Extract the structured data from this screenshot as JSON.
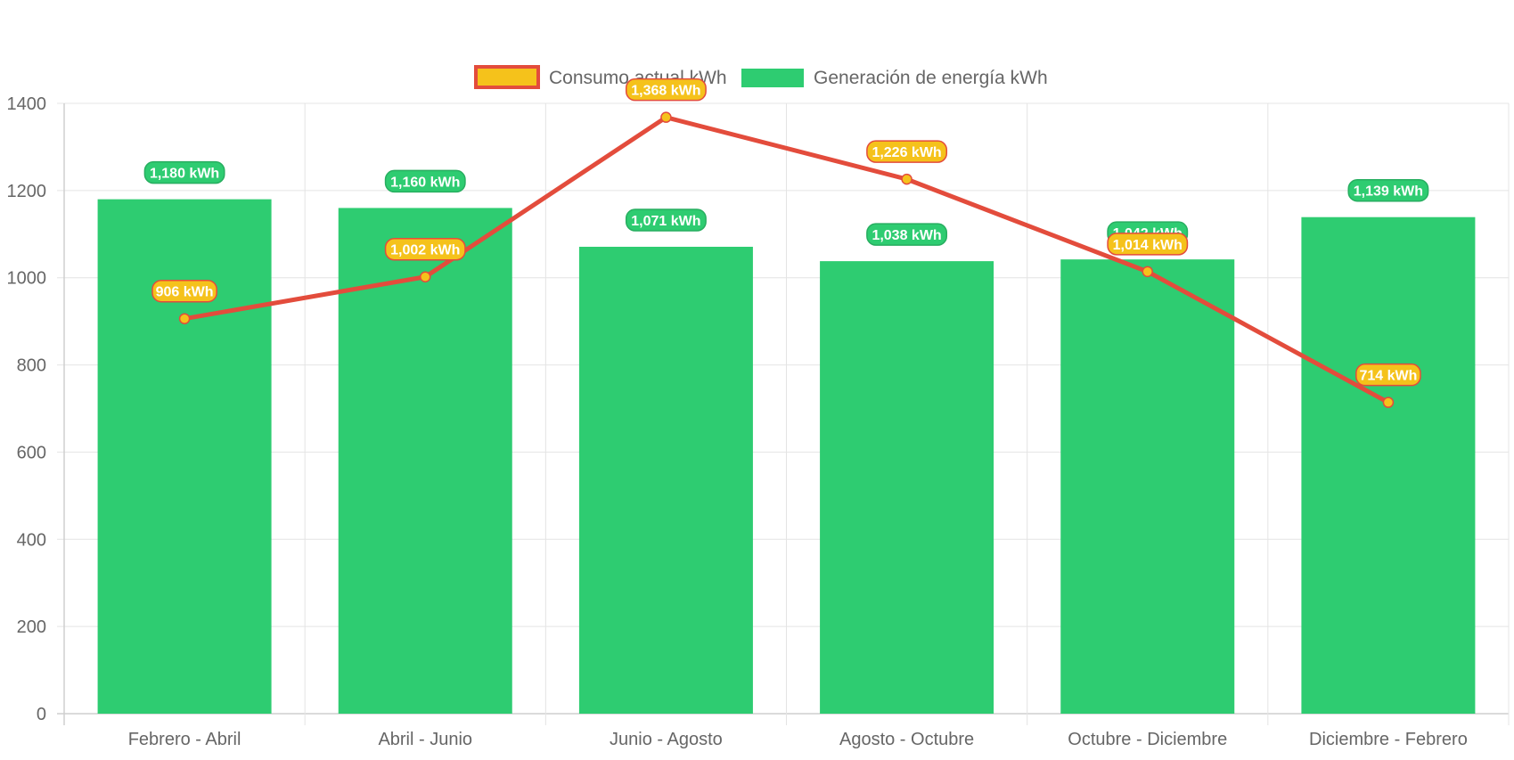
{
  "chart_data": {
    "type": "bar",
    "categories": [
      "Febrero - Abril",
      "Abril - Junio",
      "Junio - Agosto",
      "Agosto - Octubre",
      "Octubre - Diciembre",
      "Diciembre - Febrero"
    ],
    "series": [
      {
        "name": "Consumo actual kWh",
        "type": "line",
        "values": [
          906,
          1002,
          1368,
          1226,
          1014,
          714
        ],
        "labels": [
          "906 kWh",
          "1,002 kWh",
          "1,368 kWh",
          "1,226 kWh",
          "1,014 kWh",
          "714 kWh"
        ],
        "color": "#e34c3c",
        "fill_color": "#f5c21b"
      },
      {
        "name": "Generación de energía kWh",
        "type": "bar",
        "values": [
          1180,
          1160,
          1071,
          1038,
          1042,
          1139
        ],
        "labels": [
          "1,180 kWh",
          "1,160 kWh",
          "1,071 kWh",
          "1,038 kWh",
          "1,042 kWh",
          "1,139 kWh"
        ],
        "color": "#2ecc71"
      }
    ],
    "ylim": [
      0,
      1400
    ],
    "yticks": [
      "0",
      "200",
      "400",
      "600",
      "800",
      "1000",
      "1200",
      "1400"
    ],
    "grid": true,
    "legend_position": "top-center"
  }
}
